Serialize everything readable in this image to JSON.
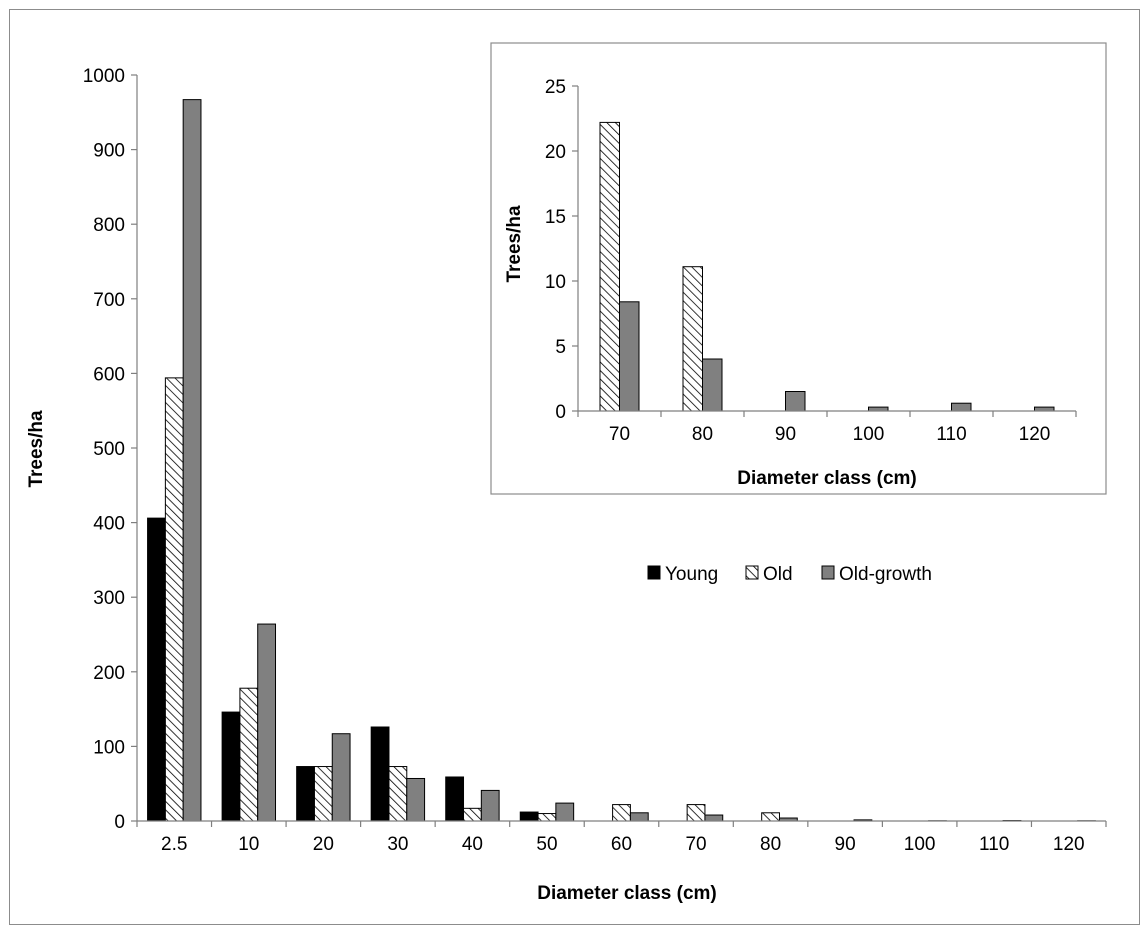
{
  "chart_data": [
    {
      "type": "bar",
      "xlabel": "Diameter class (cm)",
      "ylabel": "Trees/ha",
      "ylim": [
        0,
        1000
      ],
      "yticks": [
        0,
        100,
        200,
        300,
        400,
        500,
        600,
        700,
        800,
        900,
        1000
      ],
      "categories": [
        "2.5",
        "10",
        "20",
        "30",
        "40",
        "50",
        "60",
        "70",
        "80",
        "90",
        "100",
        "110",
        "120"
      ],
      "series": [
        {
          "name": "Young",
          "values": [
            406,
            146,
            73,
            126,
            59,
            12,
            0,
            0,
            0,
            0,
            0,
            0,
            0
          ]
        },
        {
          "name": "Old",
          "values": [
            594,
            178,
            73,
            73,
            17,
            10,
            22,
            22,
            11,
            0,
            0,
            0,
            0
          ]
        },
        {
          "name": "Old-growth",
          "values": [
            967,
            264,
            117,
            57,
            41,
            24,
            11,
            8,
            4,
            1.5,
            0.3,
            0.6,
            0.3
          ]
        }
      ],
      "legend": "center-right",
      "grid": false
    },
    {
      "type": "bar",
      "xlabel": "Diameter class (cm)",
      "ylabel": "Trees/ha",
      "ylim": [
        0,
        25
      ],
      "yticks": [
        0,
        5,
        10,
        15,
        20,
        25
      ],
      "categories": [
        "70",
        "80",
        "90",
        "100",
        "110",
        "120"
      ],
      "series": [
        {
          "name": "Old",
          "values": [
            22.2,
            11.1,
            0,
            0,
            0,
            0
          ]
        },
        {
          "name": "Old-growth",
          "values": [
            8.4,
            4.0,
            1.5,
            0.3,
            0.6,
            0.3
          ]
        }
      ],
      "legend": "none",
      "grid": false
    }
  ],
  "colors": {
    "young": "#000000",
    "old_growth": "#808080",
    "old_hatch": "#000000",
    "axis": "#7f7f7f"
  }
}
